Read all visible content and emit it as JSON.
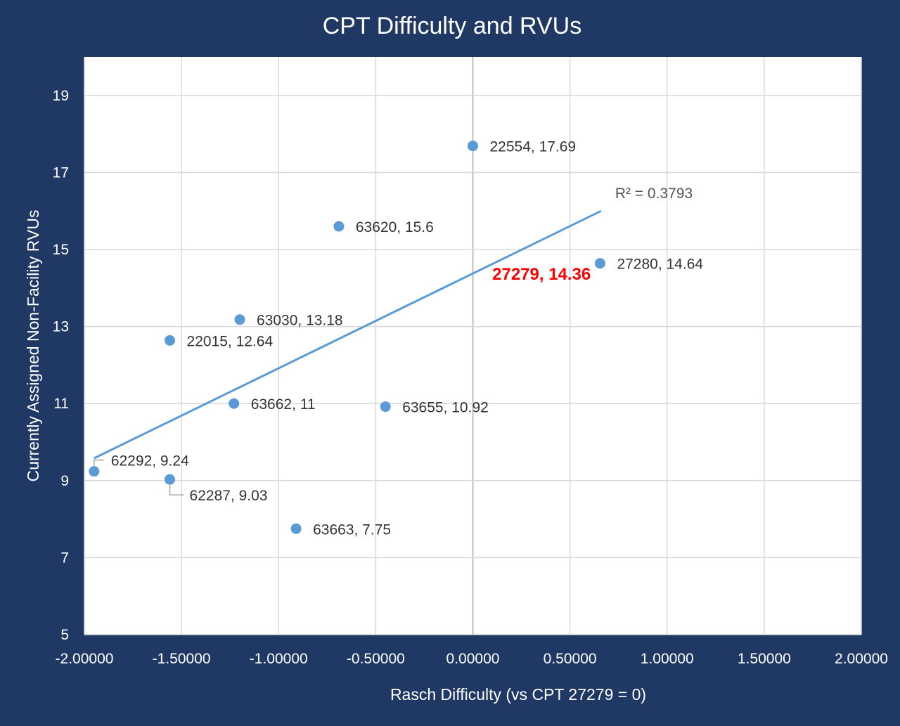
{
  "chart_data": {
    "type": "scatter",
    "title": "CPT Difficulty and RVUs",
    "xlabel": "Rasch Difficulty (vs CPT 27279 = 0)",
    "ylabel": "Currently Assigned Non-Facility RVUs",
    "xlim": [
      -2.0,
      2.0
    ],
    "ylim": [
      5,
      20
    ],
    "x_ticks": [
      "-2.00000",
      "-1.50000",
      "-1.00000",
      "-0.50000",
      "0.00000",
      "0.50000",
      "1.00000",
      "1.50000",
      "2.00000"
    ],
    "x_tick_values": [
      -2.0,
      -1.5,
      -1.0,
      -0.5,
      0.0,
      0.5,
      1.0,
      1.5,
      2.0
    ],
    "y_ticks": [
      "5",
      "7",
      "9",
      "11",
      "13",
      "15",
      "17",
      "19"
    ],
    "y_tick_values": [
      5,
      7,
      9,
      11,
      13,
      15,
      17,
      19
    ],
    "grid": true,
    "marker_color": "#5b9bd5",
    "trendline_color": "#5b9bd5",
    "highlight_color": "#ff0000",
    "points": [
      {
        "x": 0.0,
        "y": 17.69,
        "label": "22554, 17.69"
      },
      {
        "x": -0.69,
        "y": 15.6,
        "label": "63620, 15.6"
      },
      {
        "x": 0.655,
        "y": 14.64,
        "label": "27280, 14.64"
      },
      {
        "x": -1.2,
        "y": 13.18,
        "label": "63030, 13.18"
      },
      {
        "x": -1.56,
        "y": 12.64,
        "label": "22015, 12.64"
      },
      {
        "x": -1.23,
        "y": 11.0,
        "label": "63662, 11"
      },
      {
        "x": -0.45,
        "y": 10.92,
        "label": "63655, 10.92"
      },
      {
        "x": -1.95,
        "y": 9.24,
        "label": "62292, 9.24"
      },
      {
        "x": -1.56,
        "y": 9.03,
        "label": "62287, 9.03"
      },
      {
        "x": -0.91,
        "y": 7.75,
        "label": "63663, 7.75"
      }
    ],
    "highlight_annotation": {
      "label": "27279, 14.36"
    },
    "trendline": {
      "type": "linear",
      "x_start": -1.95,
      "y_start": 9.58,
      "x_end": 0.66,
      "y_end": 16.0,
      "r2_label": "R² = 0.3793"
    }
  }
}
